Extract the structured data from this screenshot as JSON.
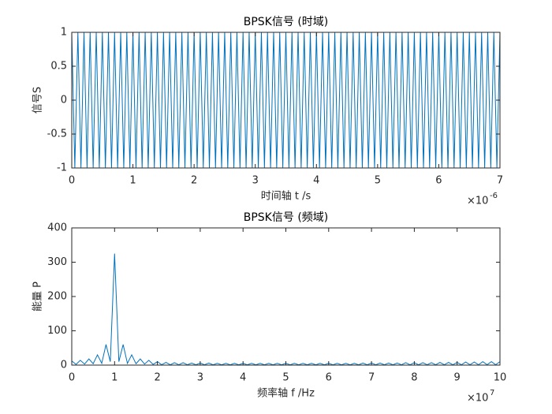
{
  "chart_data": [
    {
      "type": "line",
      "title": "BPSK信号 (时域)",
      "x_label": "时间轴 t /s",
      "y_label": "信号S",
      "x_multiplier": "×10",
      "x_exponent": "-6",
      "xlim": [
        0,
        7
      ],
      "ylim": [
        -1,
        1
      ],
      "xticks": [
        0,
        1,
        2,
        3,
        4,
        5,
        6,
        7
      ],
      "yticks": [
        -1,
        -0.5,
        0,
        0.5,
        1
      ],
      "x": [
        0,
        0.05,
        0.1,
        0.15,
        0.2,
        0.25,
        0.3,
        0.35,
        0.4,
        0.45,
        0.5,
        0.55,
        0.6,
        0.65,
        0.7,
        0.75,
        0.8,
        0.85,
        0.9,
        0.95,
        1,
        1.05,
        1.1,
        1.15,
        1.2,
        1.25,
        1.3,
        1.35,
        1.4,
        1.45,
        1.5,
        1.55,
        1.6,
        1.65,
        1.7,
        1.75,
        1.8,
        1.85,
        1.9,
        1.95,
        2,
        2.05,
        2.1,
        2.15,
        2.2,
        2.25,
        2.3,
        2.35,
        2.4,
        2.45,
        2.5,
        2.55,
        2.6,
        2.65,
        2.7,
        2.75,
        2.8,
        2.85,
        2.9,
        2.95,
        3,
        3.05,
        3.1,
        3.15,
        3.2,
        3.25,
        3.3,
        3.35,
        3.4,
        3.45,
        3.5,
        3.55,
        3.6,
        3.65,
        3.7,
        3.75,
        3.8,
        3.85,
        3.9,
        3.95,
        4,
        4.05,
        4.1,
        4.15,
        4.2,
        4.25,
        4.3,
        4.35,
        4.4,
        4.45,
        4.5,
        4.55,
        4.6,
        4.65,
        4.7,
        4.75,
        4.8,
        4.85,
        4.9,
        4.95,
        5,
        5.05,
        5.1,
        5.15,
        5.2,
        5.25,
        5.3,
        5.35,
        5.4,
        5.45,
        5.5,
        5.55,
        5.6,
        5.65,
        5.7,
        5.75,
        5.8,
        5.85,
        5.9,
        5.95,
        6,
        6.05,
        6.1,
        6.15,
        6.2,
        6.25,
        6.3,
        6.35,
        6.4,
        6.45,
        6.5,
        6.55,
        6.6,
        6.65,
        6.7,
        6.75,
        6.8,
        6.85,
        6.9,
        6.95,
        7
      ],
      "series": [
        {
          "color": "#0072bd",
          "values": [
            1,
            -1,
            1,
            -1,
            1,
            -1,
            1,
            -1,
            1,
            -1,
            1,
            -1,
            1,
            -1,
            1,
            -1,
            1,
            -1,
            1,
            -1,
            1,
            -1,
            1,
            -1,
            1,
            -1,
            1,
            -1,
            1,
            -1,
            1,
            -1,
            1,
            -1,
            1,
            -1,
            1,
            -1,
            1,
            -1,
            1,
            -1,
            1,
            -1,
            1,
            -1,
            1,
            -1,
            1,
            -1,
            1,
            -1,
            1,
            -1,
            1,
            -1,
            1,
            -1,
            1,
            -1,
            1,
            -1,
            1,
            -1,
            1,
            -1,
            1,
            -1,
            1,
            -1,
            1,
            -1,
            1,
            -1,
            1,
            -1,
            1,
            -1,
            1,
            -1,
            1,
            -1,
            1,
            -1,
            1,
            -1,
            1,
            -1,
            1,
            -1,
            1,
            -1,
            1,
            -1,
            1,
            -1,
            1,
            -1,
            1,
            -1,
            1,
            -1,
            1,
            -1,
            1,
            -1,
            1,
            -1,
            1,
            -1,
            1,
            -1,
            1,
            -1,
            1,
            -1,
            1,
            -1,
            1,
            -1,
            1,
            -1,
            1,
            -1,
            1,
            -1,
            1,
            -1,
            1,
            -1,
            1,
            -1,
            1,
            -1,
            1,
            -1,
            1,
            -1,
            1,
            -1,
            1
          ]
        }
      ]
    },
    {
      "type": "line",
      "title": "BPSK信号 (频域)",
      "x_label": "频率轴 f /Hz",
      "y_label": "能量 P",
      "x_multiplier": "×10",
      "x_exponent": "7",
      "xlim": [
        0,
        10
      ],
      "ylim": [
        0,
        400
      ],
      "xticks": [
        0,
        1,
        2,
        3,
        4,
        5,
        6,
        7,
        8,
        9,
        10
      ],
      "yticks": [
        0,
        100,
        200,
        300,
        400
      ],
      "x": [
        0,
        0.1,
        0.2,
        0.3,
        0.4,
        0.5,
        0.6,
        0.7,
        0.8,
        0.9,
        1,
        1.1,
        1.2,
        1.3,
        1.4,
        1.5,
        1.6,
        1.7,
        1.8,
        1.9,
        2,
        2.1,
        2.2,
        2.3,
        2.4,
        2.5,
        2.6,
        2.7,
        2.8,
        2.9,
        3,
        3.1,
        3.2,
        3.3,
        3.4,
        3.5,
        3.6,
        3.7,
        3.8,
        3.9,
        4,
        4.1,
        4.2,
        4.3,
        4.4,
        4.5,
        4.6,
        4.7,
        4.8,
        4.9,
        5,
        5.1,
        5.2,
        5.3,
        5.4,
        5.5,
        5.6,
        5.7,
        5.8,
        5.9,
        6,
        6.1,
        6.2,
        6.3,
        6.4,
        6.5,
        6.6,
        6.7,
        6.8,
        6.9,
        7,
        7.1,
        7.2,
        7.3,
        7.4,
        7.5,
        7.6,
        7.7,
        7.8,
        7.9,
        8,
        8.1,
        8.2,
        8.3,
        8.4,
        8.5,
        8.6,
        8.7,
        8.8,
        8.9,
        9,
        9.1,
        9.2,
        9.3,
        9.4,
        9.5,
        9.6,
        9.7,
        9.8,
        9.9,
        10
      ],
      "series": [
        {
          "color": "#0072bd",
          "values": [
            12,
            2,
            14,
            3,
            18,
            4,
            30,
            5,
            60,
            10,
            325,
            10,
            60,
            5,
            30,
            4,
            18,
            3,
            14,
            2,
            10,
            1,
            8,
            1,
            7,
            1,
            7,
            1,
            6,
            1,
            6,
            1,
            6,
            1,
            5,
            1,
            5,
            1,
            5,
            1,
            5,
            1,
            5,
            1,
            5,
            1,
            5,
            1,
            5,
            1,
            5,
            1,
            5,
            1,
            5,
            1,
            5,
            1,
            5,
            1,
            5,
            1,
            5,
            1,
            5,
            1,
            5,
            1,
            6,
            1,
            6,
            1,
            6,
            1,
            6,
            1,
            6,
            1,
            7,
            1,
            7,
            1,
            7,
            1,
            7,
            1,
            8,
            1,
            8,
            1,
            8,
            1,
            9,
            1,
            9,
            1,
            10,
            1,
            10,
            1,
            10
          ]
        }
      ]
    }
  ]
}
